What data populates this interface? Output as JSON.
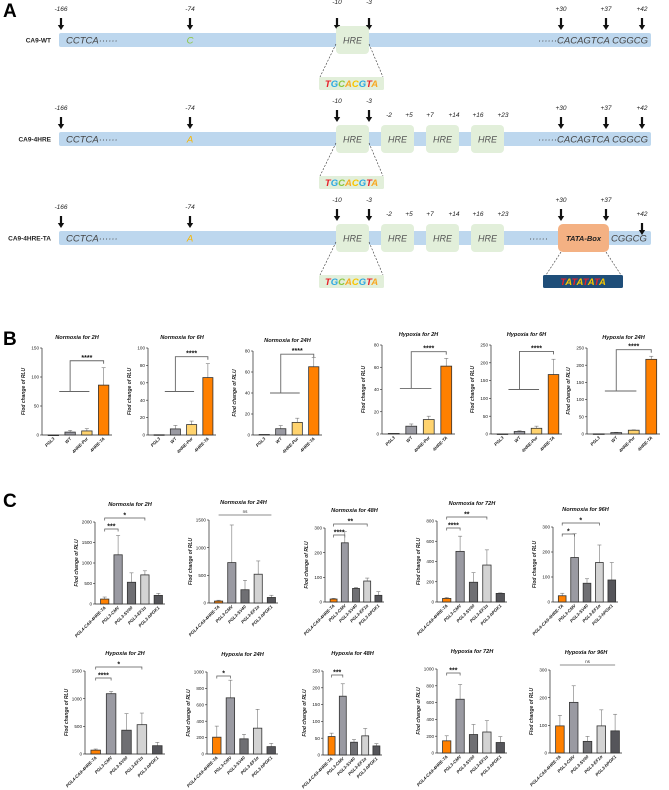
{
  "panel_a": {
    "label": "A",
    "rows": [
      {
        "name": "CA9-WT",
        "arrows": [
          "-166",
          "-74",
          "-10",
          "-3",
          "+30",
          "+37",
          "+42"
        ],
        "left_seq": "CCTCA······",
        "site_base": "C",
        "hre_label": "HRE",
        "hre_count": 1,
        "offsets": [],
        "right_seq": "······CACAGTCA CGGCG",
        "hre_seq": "TGCACGTA"
      },
      {
        "name": "CA9-4HRE",
        "arrows": [
          "-166",
          "-74",
          "-10",
          "-3",
          "+30",
          "+37",
          "+42"
        ],
        "left_seq": "CCTCA······",
        "site_base": "A",
        "hre_label": "HRE",
        "hre_count": 4,
        "offsets": [
          "-2",
          "+5",
          "+7",
          "+14",
          "+16",
          "+23"
        ],
        "right_seq": "······CACAGTCA CGGCG",
        "hre_seq": "TGCACGTA"
      },
      {
        "name": "CA9-4HRE-TA",
        "arrows": [
          "-166",
          "-74",
          "-10",
          "-3",
          "+30",
          "+37",
          "+42"
        ],
        "left_seq": "CCTCA······",
        "site_base": "A",
        "hre_label": "HRE",
        "hre_count": 4,
        "offsets": [
          "-2",
          "+5",
          "+7",
          "+14",
          "+16",
          "+23"
        ],
        "right_dots": "······",
        "tata_box": "TATA-Box",
        "right_tail": "CGGCG",
        "hre_seq": "TGCACGTA",
        "tata_seq": "TATATATA"
      }
    ],
    "colors": {
      "bar": "#bdd7ee",
      "hre_box": "#e2efda",
      "tata_box": "#f4b183",
      "tata_seq_box": "#1f4e79",
      "T": "#e8202a",
      "G": "#2ea8e0",
      "C": "#8cc63f",
      "A": "#f7a823",
      "site_wt": "#8cc63f",
      "site_mut": "#f7b500"
    }
  },
  "panel_b_label": "B",
  "panel_c_label": "C",
  "chart_data": [
    {
      "panel": "B",
      "type": "bar",
      "title": "Normoxia for 2H",
      "ylabel": "Flod change of RLU",
      "categories": [
        "PGL3",
        "WT",
        "4HRE-Pur",
        "4HRE-TA"
      ],
      "values": [
        0,
        5,
        7,
        86
      ],
      "errors": [
        0,
        3,
        4,
        30
      ],
      "ylim": [
        0,
        150
      ],
      "yticks": [
        0,
        50,
        100,
        150
      ],
      "colors": [
        "#ffffff",
        "#9a9aa2",
        "#ffd36e",
        "#ff8000"
      ],
      "sig_group": {
        "level": 75,
        "top": 128,
        "label": "****"
      }
    },
    {
      "panel": "B",
      "type": "bar",
      "title": "Normoxia  for 6H",
      "ylabel": "Flod change of RLU",
      "categories": [
        "PGL3",
        "WT",
        "4HRE-Pur",
        "4HRE-TA"
      ],
      "values": [
        0.3,
        7,
        12,
        66
      ],
      "errors": [
        0,
        4,
        4,
        16
      ],
      "ylim": [
        0,
        100
      ],
      "yticks": [
        0,
        20,
        40,
        60,
        80,
        100
      ],
      "colors": [
        "#ffffff",
        "#9a9aa2",
        "#ffd36e",
        "#ff8000"
      ],
      "sig_group": {
        "level": 50,
        "top": 90,
        "label": "****"
      }
    },
    {
      "panel": "B",
      "type": "bar",
      "title": "Normoxia for 24H",
      "ylabel": "Flod change of RLU",
      "categories": [
        "PGL3",
        "WT",
        "4HRE-Pur",
        "4HRE-TA"
      ],
      "values": [
        0.5,
        6,
        12,
        65
      ],
      "errors": [
        0,
        3,
        4,
        9
      ],
      "ylim": [
        0,
        80
      ],
      "yticks": [
        0,
        20,
        40,
        60,
        80
      ],
      "colors": [
        "#ffffff",
        "#9a9aa2",
        "#ffd36e",
        "#ff8000"
      ],
      "sig_group": {
        "level": 40,
        "top": 77,
        "label": "****"
      }
    },
    {
      "panel": "B",
      "type": "bar",
      "title": "Hypoxia for 2H",
      "ylabel": "Flod change of RLU",
      "categories": [
        "PGL3",
        "WT",
        "4HRE-Pur",
        "4HRE-TA"
      ],
      "values": [
        0.5,
        7,
        13,
        61
      ],
      "errors": [
        0,
        2,
        3,
        7
      ],
      "ylim": [
        0,
        80
      ],
      "yticks": [
        0,
        20,
        40,
        60,
        80
      ],
      "colors": [
        "#ffffff",
        "#9a9aa2",
        "#ffd36e",
        "#ff8000"
      ],
      "sig_group": {
        "level": 41,
        "top": 74,
        "label": "****"
      }
    },
    {
      "panel": "B",
      "type": "bar",
      "title": "Hypoxia for 6H",
      "ylabel": "Flod change of RLU",
      "categories": [
        "PGL3",
        "WT",
        "4HRE-Pur",
        "4HRE-TA"
      ],
      "values": [
        0.3,
        7,
        16,
        167
      ],
      "errors": [
        0,
        2,
        6,
        43
      ],
      "ylim": [
        0,
        250
      ],
      "yticks": [
        0,
        50,
        100,
        150,
        200,
        250
      ],
      "colors": [
        "#ffffff",
        "#9a9aa2",
        "#ffd36e",
        "#ff8000"
      ],
      "sig_group": {
        "level": 125,
        "top": 232,
        "label": "****"
      }
    },
    {
      "panel": "B",
      "type": "bar",
      "title": "Hypoxia for 24H",
      "ylabel": "Flod change of RLU",
      "categories": [
        "PGL3",
        "WT",
        "4HRE-Pur",
        "4HRE-TA"
      ],
      "values": [
        0.5,
        4,
        11,
        217
      ],
      "errors": [
        0,
        1,
        1,
        9
      ],
      "ylim": [
        0,
        250
      ],
      "yticks": [
        0,
        50,
        100,
        150,
        200,
        250
      ],
      "colors": [
        "#ffffff",
        "#9a9aa2",
        "#ffd36e",
        "#ff8000"
      ],
      "sig_group": {
        "level": 125,
        "top": 245,
        "label": "****"
      }
    },
    {
      "panel": "C",
      "type": "bar",
      "title": "Normoxia for 2H",
      "ylabel": "Flod change of RLU",
      "categories": [
        "PGL4-CA9-4HRE-TA",
        "PGL3-CMV",
        "PGL3-SV40",
        "PGL3-EF1α",
        "PGL3-hPGK1"
      ],
      "values": [
        120,
        1200,
        530,
        710,
        210
      ],
      "errors": [
        50,
        470,
        230,
        100,
        50
      ],
      "ylim": [
        0,
        2000
      ],
      "yticks": [
        0,
        500,
        1000,
        1500,
        2000
      ],
      "colors": [
        "#ff8000",
        "#9a9aa2",
        "#6f6f73",
        "#d3d3d3",
        "#55555a"
      ],
      "sigs": [
        {
          "from": 0,
          "to": 1,
          "label": "***"
        },
        {
          "from": 0,
          "to": 3,
          "label": "*"
        }
      ]
    },
    {
      "panel": "C",
      "type": "bar",
      "title": "Normoxia for 24H",
      "ylabel": "Flod change of RLU",
      "categories": [
        "PGL4-CA9-4HRE-TA",
        "PGL3-CMV",
        "PGL3-SV40",
        "PGL3-EF1α",
        "PGL3-hPGK1"
      ],
      "values": [
        35,
        730,
        240,
        520,
        100
      ],
      "errors": [
        15,
        680,
        170,
        240,
        40
      ],
      "ylim": [
        0,
        1500
      ],
      "yticks": [
        0,
        500,
        1000,
        1500
      ],
      "colors": [
        "#ff8000",
        "#9a9aa2",
        "#6f6f73",
        "#d3d3d3",
        "#55555a"
      ],
      "sigs": [
        {
          "from": 0,
          "to": 4,
          "label": "ns"
        }
      ]
    },
    {
      "panel": "C",
      "type": "bar",
      "title": "Normoxia for 48H",
      "ylabel": "Flod change of RLU",
      "categories": [
        "PGL4-CA9-4HRE-TA",
        "PGL3-CMV",
        "PGL3-SV40",
        "PGL3-EF1α",
        "PGL3-hPGK1"
      ],
      "values": [
        12,
        240,
        55,
        85,
        27
      ],
      "errors": [
        3,
        45,
        4,
        12,
        15
      ],
      "ylim": [
        0,
        300
      ],
      "yticks": [
        0,
        100,
        200,
        300
      ],
      "colors": [
        "#ff8000",
        "#9a9aa2",
        "#6f6f73",
        "#d3d3d3",
        "#55555a"
      ],
      "sigs": [
        {
          "from": 0,
          "to": 1,
          "label": "****"
        },
        {
          "from": 0,
          "to": 3,
          "label": "**"
        }
      ]
    },
    {
      "panel": "C",
      "type": "bar",
      "title": "Normoxia for 72H",
      "ylabel": "Flod change of RLU",
      "categories": [
        "PGL4-CA9-4HRE-TA",
        "PGL3-CMV",
        "PGL3-SV40",
        "PGL3-EF1α",
        "PGL3-hPGK1"
      ],
      "values": [
        35,
        500,
        195,
        365,
        85
      ],
      "errors": [
        10,
        150,
        95,
        150,
        5
      ],
      "ylim": [
        0,
        800
      ],
      "yticks": [
        0,
        200,
        400,
        600,
        800
      ],
      "colors": [
        "#ff8000",
        "#9a9aa2",
        "#6f6f73",
        "#d3d3d3",
        "#55555a"
      ],
      "sigs": [
        {
          "from": 0,
          "to": 1,
          "label": "****"
        },
        {
          "from": 0,
          "to": 3,
          "label": "**"
        }
      ]
    },
    {
      "panel": "C",
      "type": "bar",
      "title": "Normoxia for 96H",
      "ylabel": "Flod change of RLU",
      "categories": [
        "PGL4-CA9-4HRE-TA",
        "PGL3-CMV",
        "PGL3-SV40",
        "PGL3-EF1α",
        "PGL3-hPGK1"
      ],
      "values": [
        25,
        178,
        75,
        158,
        88
      ],
      "errors": [
        10,
        95,
        18,
        70,
        70
      ],
      "ylim": [
        0,
        300
      ],
      "yticks": [
        0,
        100,
        200,
        300
      ],
      "colors": [
        "#ff8000",
        "#9a9aa2",
        "#6f6f73",
        "#d3d3d3",
        "#55555a"
      ],
      "sigs": [
        {
          "from": 0,
          "to": 1,
          "label": "*"
        },
        {
          "from": 0,
          "to": 3,
          "label": "*"
        }
      ]
    },
    {
      "panel": "C",
      "type": "bar",
      "title": "Hypoxia for 2H",
      "ylabel": "Flod change of RLU",
      "categories": [
        "PGL4-CA9-4HRE-TA",
        "PGL3-CMV",
        "PGL3-SV40",
        "PGL3-EF1α",
        "PGL3-hPGK1"
      ],
      "values": [
        70,
        1090,
        430,
        530,
        150
      ],
      "errors": [
        20,
        40,
        300,
        210,
        60
      ],
      "ylim": [
        0,
        1500
      ],
      "yticks": [
        0,
        500,
        1000,
        1500
      ],
      "colors": [
        "#ff8000",
        "#9a9aa2",
        "#6f6f73",
        "#d3d3d3",
        "#55555a"
      ],
      "sigs": [
        {
          "from": 0,
          "to": 1,
          "label": "****"
        },
        {
          "from": 0,
          "to": 3,
          "label": "*"
        }
      ]
    },
    {
      "panel": "C",
      "type": "bar",
      "title": "Hypoxia for 24H",
      "ylabel": "Flod change of RLU",
      "categories": [
        "PGL4-CA9-4HRE-TA",
        "PGL3-CMV",
        "PGL3-SV40",
        "PGL3-EF1α",
        "PGL3-hPGK1"
      ],
      "values": [
        205,
        685,
        185,
        315,
        90
      ],
      "errors": [
        135,
        215,
        55,
        230,
        40
      ],
      "ylim": [
        0,
        1000
      ],
      "yticks": [
        0,
        200,
        400,
        600,
        800,
        1000
      ],
      "colors": [
        "#ff8000",
        "#9a9aa2",
        "#6f6f73",
        "#d3d3d3",
        "#55555a"
      ],
      "sigs": [
        {
          "from": 0,
          "to": 1,
          "label": "*"
        }
      ]
    },
    {
      "panel": "C",
      "type": "bar",
      "title": "Hypoxia for 48H",
      "ylabel": "Flod change of RLU",
      "categories": [
        "PGL4-CA9-4HRE-TA",
        "PGL3-CMV",
        "PGL3-SV40",
        "PGL3-EF1α",
        "PGL3-hPGK1"
      ],
      "values": [
        55,
        175,
        38,
        57,
        27
      ],
      "errors": [
        10,
        37,
        8,
        22,
        7
      ],
      "ylim": [
        0,
        250
      ],
      "yticks": [
        0,
        50,
        100,
        150,
        200,
        250
      ],
      "colors": [
        "#ff8000",
        "#9a9aa2",
        "#6f6f73",
        "#d3d3d3",
        "#55555a"
      ],
      "sigs": [
        {
          "from": 0,
          "to": 1,
          "label": "***"
        }
      ]
    },
    {
      "panel": "C",
      "type": "bar",
      "title": "Hypoxia for 72H",
      "ylabel": "Flod change of RLU",
      "categories": [
        "PGL4-CA9-4HRE-TA",
        "PGL3-CMV",
        "PGL3-SV40",
        "PGL3-EF1α",
        "PGL3-hPGK1"
      ],
      "values": [
        145,
        640,
        220,
        250,
        125
      ],
      "errors": [
        60,
        175,
        120,
        135,
        70
      ],
      "ylim": [
        0,
        1000
      ],
      "yticks": [
        0,
        200,
        400,
        600,
        800,
        1000
      ],
      "colors": [
        "#ff8000",
        "#9a9aa2",
        "#6f6f73",
        "#d3d3d3",
        "#55555a"
      ],
      "sigs": [
        {
          "from": 0,
          "to": 1,
          "label": "***"
        }
      ]
    },
    {
      "panel": "C",
      "type": "bar",
      "title": "Hypoxia for 96H",
      "ylabel": "Flod change of RLU",
      "categories": [
        "PGL4-CA9-4HRE-TA",
        "PGL3-CMV",
        "PGL3-SV40",
        "PGL3-EF1α",
        "PGL3-hPGK1"
      ],
      "values": [
        98,
        183,
        42,
        98,
        80
      ],
      "errors": [
        38,
        60,
        18,
        58,
        60
      ],
      "ylim": [
        0,
        300
      ],
      "yticks": [
        0,
        100,
        200,
        300
      ],
      "colors": [
        "#ff8000",
        "#9a9aa2",
        "#6f6f73",
        "#d3d3d3",
        "#55555a"
      ],
      "sigs": [
        {
          "from": 0,
          "to": 4,
          "label": "ns"
        }
      ]
    }
  ]
}
